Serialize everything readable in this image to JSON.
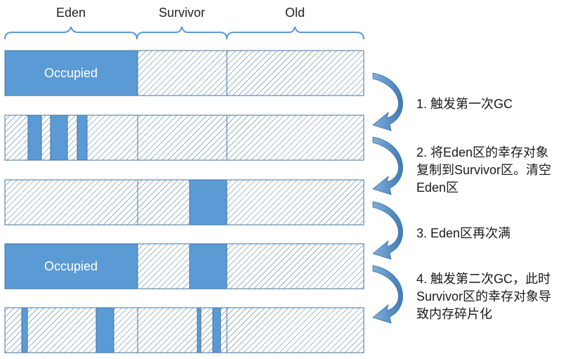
{
  "regions": [
    {
      "name": "Eden"
    },
    {
      "name": "Survivor"
    },
    {
      "name": "Old"
    }
  ],
  "occupied_label": "Occupied",
  "colors": {
    "occupied_fill": "#5b9bd5",
    "occupied_border": "#41729f",
    "hatch_line": "#3d6f93",
    "brace": "#5b9bd5",
    "arrow": "#4a86bd"
  },
  "steps": [
    {
      "text": "1. 触发第一次GC"
    },
    {
      "text": "2. 将Eden区的幸存对象\n复制到Survivor区。清空\nEden区"
    },
    {
      "text": "3. Eden区再次满"
    },
    {
      "text": "4. 触发第二次GC，此时\nSurvivor区的幸存对象导\n致内存碎片化"
    }
  ]
}
